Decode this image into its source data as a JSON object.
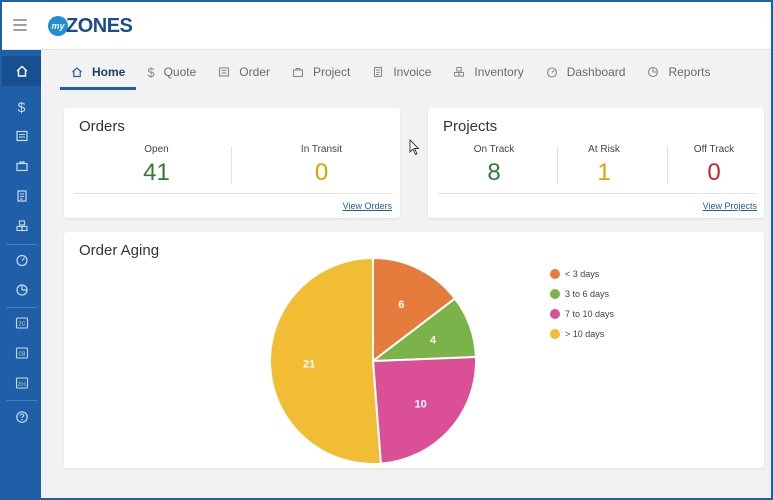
{
  "app": {
    "logo_prefix": "my",
    "logo_text": "ZONES"
  },
  "tabs": [
    {
      "label": "Home",
      "icon": "home-icon"
    },
    {
      "label": "Quote",
      "icon": "dollar-icon"
    },
    {
      "label": "Order",
      "icon": "order-icon"
    },
    {
      "label": "Project",
      "icon": "briefcase-icon"
    },
    {
      "label": "Invoice",
      "icon": "invoice-icon"
    },
    {
      "label": "Inventory",
      "icon": "inventory-icon"
    },
    {
      "label": "Dashboard",
      "icon": "dashboard-icon"
    },
    {
      "label": "Reports",
      "icon": "reports-icon"
    }
  ],
  "sidebar": {
    "dollar_glyph": "$",
    "badges": [
      "ZC",
      "CB",
      "ZDS"
    ]
  },
  "orders": {
    "title": "Orders",
    "open_label": "Open",
    "open_value": "41",
    "transit_label": "In Transit",
    "transit_value": "0",
    "link": "View Orders"
  },
  "projects": {
    "title": "Projects",
    "on_track_label": "On Track",
    "on_track_value": "8",
    "at_risk_label": "At Risk",
    "at_risk_value": "1",
    "off_track_label": "Off Track",
    "off_track_value": "0",
    "link": "View Projects"
  },
  "aging": {
    "title": "Order Aging"
  },
  "colors": {
    "green": "#2e7d32",
    "orange": "#e0a000",
    "red": "#c62828",
    "brand": "#1f5fa8"
  },
  "chart_data": {
    "type": "pie",
    "title": "Order Aging",
    "slices": [
      {
        "label": "< 3 days",
        "value": 6,
        "color": "#e57c3b"
      },
      {
        "label": "3 to 6 days",
        "value": 4,
        "color": "#7cb24a"
      },
      {
        "label": "7 to 10 days",
        "value": 10,
        "color": "#db4f96"
      },
      {
        "label": "> 10 days",
        "value": 21,
        "color": "#f0bd34"
      }
    ],
    "legend": "right"
  }
}
